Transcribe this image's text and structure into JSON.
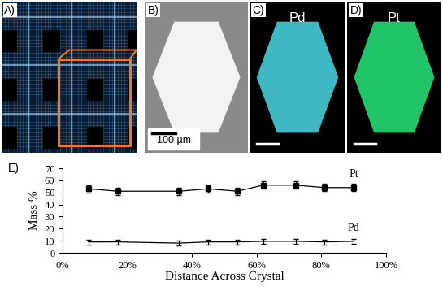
{
  "panels": [
    {
      "label": "A)"
    },
    {
      "label": "B)",
      "scale_bar": "100 µm"
    },
    {
      "label": "C)",
      "element": "Pd"
    },
    {
      "label": "D)",
      "element": "Pt"
    }
  ],
  "chart_data": {
    "type": "line",
    "label": "E)",
    "x_label": "Distance Across Crystal",
    "y_label": "Mass %",
    "x": [
      8,
      17,
      36,
      45,
      54,
      62,
      72,
      81,
      90
    ],
    "series": [
      {
        "name": "Pt",
        "color": "#000000",
        "marker": "s",
        "values": [
          53,
          51,
          51,
          53,
          51,
          56,
          56,
          54,
          54
        ],
        "errors": [
          3,
          3,
          3,
          3,
          3,
          3,
          3,
          3,
          3
        ]
      },
      {
        "name": "Pd",
        "color": "#000000",
        "marker": "none",
        "values": [
          9,
          9,
          8,
          9,
          9,
          9.5,
          9.5,
          9,
          9.5
        ],
        "errors": [
          2,
          2,
          2,
          2,
          2,
          2,
          2,
          2,
          2
        ]
      }
    ],
    "xlim": [
      0,
      100
    ],
    "xticks": [
      {
        "value": 0,
        "label": "0%"
      },
      {
        "value": 20,
        "label": "20%"
      },
      {
        "value": 40,
        "label": "40%"
      },
      {
        "value": 60,
        "label": "60%"
      },
      {
        "value": 80,
        "label": "80%"
      },
      {
        "value": 100,
        "label": "100%"
      }
    ],
    "ylim": [
      0,
      70
    ],
    "yticks": [
      0,
      10,
      20,
      30,
      40,
      50,
      60,
      70
    ],
    "grid": false
  }
}
